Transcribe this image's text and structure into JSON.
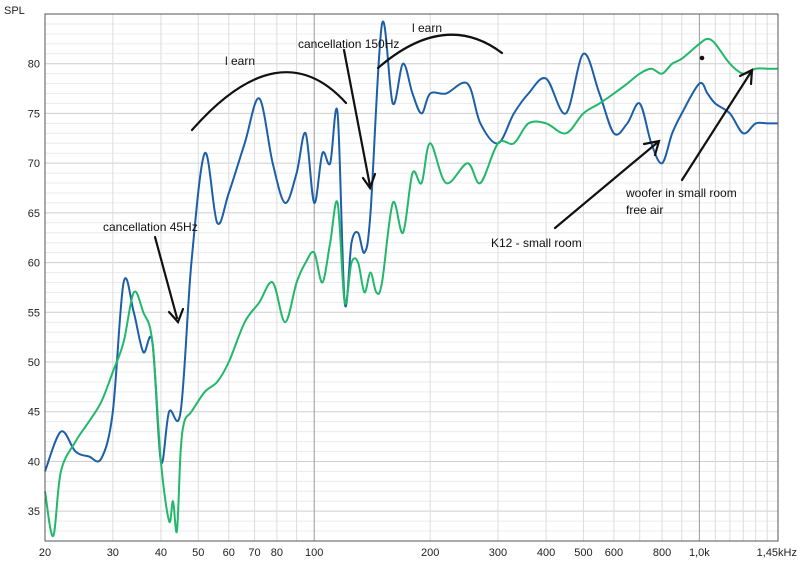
{
  "chart_data": {
    "type": "line",
    "ylabel": "SPL",
    "xscale": "log",
    "xlim": [
      20,
      1600
    ],
    "ylim": [
      32,
      85
    ],
    "grid": true,
    "x_ticks": [
      {
        "value": 20,
        "label": "20"
      },
      {
        "value": 30,
        "label": "30"
      },
      {
        "value": 40,
        "label": "40"
      },
      {
        "value": 50,
        "label": "50"
      },
      {
        "value": 60,
        "label": "60"
      },
      {
        "value": 70,
        "label": "70"
      },
      {
        "value": 80,
        "label": "80"
      },
      {
        "value": 100,
        "label": "100"
      },
      {
        "value": 200,
        "label": "200"
      },
      {
        "value": 300,
        "label": "300"
      },
      {
        "value": 400,
        "label": "400"
      },
      {
        "value": 500,
        "label": "500"
      },
      {
        "value": 600,
        "label": "600"
      },
      {
        "value": 800,
        "label": "800"
      },
      {
        "value": 1000,
        "label": "1,0k"
      },
      {
        "value": 1450,
        "label": "1,45kHz"
      }
    ],
    "y_ticks": [
      35,
      40,
      45,
      50,
      55,
      60,
      65,
      70,
      75,
      80
    ],
    "series": [
      {
        "color": "#1c5fa8",
        "x": [
          20,
          22,
          24,
          26,
          28,
          30,
          32,
          34,
          36,
          38,
          40,
          42,
          45,
          48,
          52,
          56,
          60,
          66,
          72,
          78,
          84,
          90,
          95,
          100,
          105,
          110,
          115,
          120,
          125,
          130,
          135,
          140,
          150,
          160,
          170,
          180,
          190,
          200,
          220,
          250,
          270,
          300,
          330,
          360,
          400,
          450,
          500,
          550,
          600,
          650,
          700,
          750,
          800,
          850,
          900,
          1000,
          1050,
          1100,
          1200,
          1300,
          1400,
          1500,
          1600
        ],
        "y": [
          39,
          43,
          41,
          40.5,
          40.3,
          45,
          58,
          55,
          51,
          52,
          40,
          45,
          45,
          60,
          71,
          64,
          67,
          72,
          76.5,
          70,
          66,
          69,
          73,
          66,
          71,
          70,
          75,
          56,
          62,
          63,
          61,
          65,
          84,
          76,
          80,
          77,
          75,
          77,
          77,
          78,
          74,
          72,
          75,
          77,
          78.5,
          75,
          81,
          77,
          73,
          74,
          76,
          72,
          70,
          73,
          75,
          78,
          77,
          76,
          75,
          73,
          74,
          74,
          74
        ]
      },
      {
        "color": "#22b86a",
        "x": [
          20,
          21,
          22,
          24,
          26,
          28,
          30,
          32,
          34,
          36,
          38,
          40,
          42,
          43,
          44,
          45,
          46,
          48,
          52,
          56,
          60,
          66,
          72,
          78,
          84,
          90,
          95,
          100,
          105,
          110,
          115,
          120,
          125,
          130,
          135,
          140,
          145,
          150,
          160,
          170,
          180,
          190,
          200,
          220,
          250,
          270,
          300,
          330,
          360,
          400,
          450,
          500,
          550,
          600,
          650,
          700,
          750,
          800,
          850,
          900,
          1000,
          1050,
          1100,
          1200,
          1300,
          1400,
          1500,
          1600
        ],
        "y": [
          37,
          32.5,
          39,
          42,
          44,
          46,
          49,
          52,
          57,
          55,
          52,
          40,
          34,
          36,
          33,
          41,
          44,
          45,
          47,
          48,
          50,
          54,
          56,
          58,
          54,
          58,
          60,
          61,
          58,
          62,
          66,
          56,
          60,
          60,
          57,
          59,
          57,
          58,
          66,
          63,
          69,
          68,
          72,
          68,
          70,
          68,
          72,
          72,
          74,
          74,
          73,
          75,
          76,
          77,
          78,
          79,
          79.5,
          79,
          80,
          80.5,
          82,
          82.5,
          82,
          80,
          79,
          79.5,
          79.5,
          79.5
        ]
      }
    ],
    "annotations": [
      {
        "text": "cancellation 45Hz"
      },
      {
        "text": "l earn"
      },
      {
        "text": "cancellation 150Hz"
      },
      {
        "text": "l earn"
      },
      {
        "text": "woofer in small room"
      },
      {
        "text": "free air"
      },
      {
        "text": "K12 - small room"
      }
    ]
  },
  "colors": {
    "background": "#ffffff",
    "grid": "#d9d9d9",
    "axis": "#555555",
    "ink": "#111111"
  }
}
